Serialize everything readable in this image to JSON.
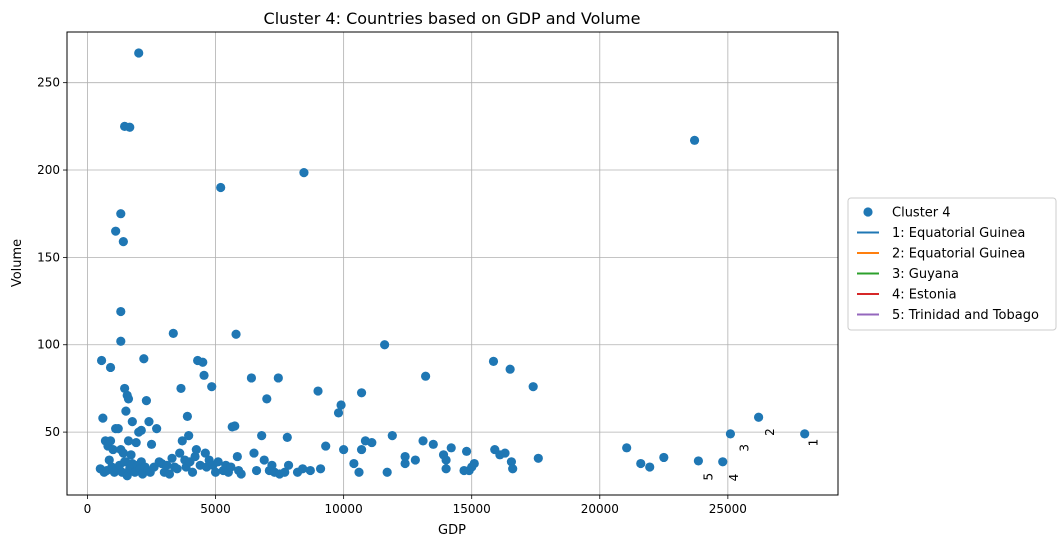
{
  "chart_data": {
    "type": "scatter",
    "title": "Cluster 4: Countries based on GDP and Volume",
    "xlabel": "GDP",
    "ylabel": "Volume",
    "xlim": [
      -800,
      29300
    ],
    "ylim": [
      14,
      279
    ],
    "xticks": [
      0,
      5000,
      10000,
      15000,
      20000,
      25000
    ],
    "xtick_labels": [
      "0",
      "5000",
      "10000",
      "15000",
      "20000",
      "25000"
    ],
    "yticks": [
      50,
      100,
      150,
      200,
      250
    ],
    "ytick_labels": [
      "50",
      "100",
      "150",
      "200",
      "250"
    ],
    "grid": true,
    "legend_placement": "outside-right",
    "series": [
      {
        "name": "Cluster 4",
        "color": "#1f77b4",
        "points": [
          [
            2000,
            267
          ],
          [
            1450,
            225
          ],
          [
            1650,
            224.5
          ],
          [
            1300,
            175
          ],
          [
            1100,
            165
          ],
          [
            1400,
            159
          ],
          [
            1300,
            119
          ],
          [
            1300,
            102
          ],
          [
            550,
            91
          ],
          [
            900,
            87
          ],
          [
            2200,
            92
          ],
          [
            1450,
            75
          ],
          [
            1550,
            71
          ],
          [
            1600,
            69
          ],
          [
            1500,
            62
          ],
          [
            1750,
            56
          ],
          [
            2100,
            51
          ],
          [
            2300,
            68
          ],
          [
            2400,
            56
          ],
          [
            2500,
            43
          ],
          [
            2700,
            52
          ],
          [
            600,
            58
          ],
          [
            700,
            45
          ],
          [
            800,
            42
          ],
          [
            900,
            45
          ],
          [
            1000,
            40
          ],
          [
            1100,
            52
          ],
          [
            1200,
            52
          ],
          [
            1300,
            40
          ],
          [
            1400,
            38
          ],
          [
            1500,
            33
          ],
          [
            1600,
            45
          ],
          [
            1700,
            37
          ],
          [
            1800,
            28
          ],
          [
            1900,
            44
          ],
          [
            2000,
            50
          ],
          [
            2100,
            33
          ],
          [
            2200,
            28
          ],
          [
            500,
            29
          ],
          [
            650,
            27
          ],
          [
            750,
            28
          ],
          [
            850,
            34
          ],
          [
            950,
            30
          ],
          [
            1050,
            27
          ],
          [
            1150,
            29
          ],
          [
            1250,
            31
          ],
          [
            1350,
            27
          ],
          [
            1450,
            33
          ],
          [
            1550,
            25
          ],
          [
            1650,
            29
          ],
          [
            1750,
            32
          ],
          [
            1850,
            27
          ],
          [
            1950,
            31
          ],
          [
            2050,
            29
          ],
          [
            2150,
            26
          ],
          [
            2250,
            30
          ],
          [
            2350,
            28
          ],
          [
            2450,
            27
          ],
          [
            2600,
            30
          ],
          [
            2800,
            33
          ],
          [
            2900,
            32
          ],
          [
            3000,
            27
          ],
          [
            3100,
            31
          ],
          [
            3200,
            26
          ],
          [
            3300,
            35
          ],
          [
            3400,
            30
          ],
          [
            3500,
            29
          ],
          [
            3600,
            38
          ],
          [
            3650,
            75
          ],
          [
            3700,
            45
          ],
          [
            3350,
            106.5
          ],
          [
            3800,
            34
          ],
          [
            3850,
            30
          ],
          [
            3900,
            59
          ],
          [
            3950,
            48
          ],
          [
            4000,
            33
          ],
          [
            4100,
            27
          ],
          [
            4200,
            36
          ],
          [
            4250,
            40
          ],
          [
            4300,
            91
          ],
          [
            4400,
            31
          ],
          [
            4500,
            90
          ],
          [
            4550,
            82.5
          ],
          [
            4600,
            38
          ],
          [
            4650,
            30
          ],
          [
            4750,
            34
          ],
          [
            4850,
            76
          ],
          [
            4900,
            31
          ],
          [
            5000,
            27
          ],
          [
            5100,
            33
          ],
          [
            5200,
            190
          ],
          [
            5300,
            28
          ],
          [
            5400,
            31
          ],
          [
            5500,
            27
          ],
          [
            5600,
            30
          ],
          [
            5650,
            53
          ],
          [
            5750,
            53.5
          ],
          [
            5800,
            106
          ],
          [
            5850,
            36
          ],
          [
            5900,
            28
          ],
          [
            6000,
            26
          ],
          [
            6400,
            81
          ],
          [
            6500,
            38
          ],
          [
            6600,
            28
          ],
          [
            6800,
            48
          ],
          [
            6900,
            34
          ],
          [
            7000,
            69
          ],
          [
            7100,
            28
          ],
          [
            7200,
            31
          ],
          [
            7300,
            27
          ],
          [
            7450,
            81
          ],
          [
            7500,
            26
          ],
          [
            7700,
            27
          ],
          [
            7800,
            47
          ],
          [
            7850,
            31
          ],
          [
            8200,
            27
          ],
          [
            8400,
            29
          ],
          [
            8450,
            198.5
          ],
          [
            8700,
            28
          ],
          [
            9000,
            73.5
          ],
          [
            9100,
            29
          ],
          [
            9300,
            42
          ],
          [
            9800,
            61
          ],
          [
            9900,
            65.5
          ],
          [
            10000,
            40
          ],
          [
            10400,
            32
          ],
          [
            10600,
            27
          ],
          [
            10700,
            72.5
          ],
          [
            10700,
            40
          ],
          [
            10850,
            45
          ],
          [
            11100,
            44
          ],
          [
            11600,
            100
          ],
          [
            11700,
            27
          ],
          [
            11900,
            48
          ],
          [
            12400,
            36
          ],
          [
            12400,
            32
          ],
          [
            12800,
            34
          ],
          [
            13100,
            45
          ],
          [
            13200,
            82
          ],
          [
            13500,
            43
          ],
          [
            13900,
            37
          ],
          [
            14000,
            34
          ],
          [
            14000,
            29
          ],
          [
            14200,
            41
          ],
          [
            14700,
            28
          ],
          [
            14800,
            39
          ],
          [
            14900,
            28
          ],
          [
            15000,
            30
          ],
          [
            15100,
            32
          ],
          [
            15850,
            90.5
          ],
          [
            15900,
            40
          ],
          [
            16100,
            37
          ],
          [
            16300,
            38
          ],
          [
            16500,
            86
          ],
          [
            16550,
            33
          ],
          [
            16600,
            29
          ],
          [
            17400,
            76
          ],
          [
            17600,
            35
          ],
          [
            21050,
            41
          ],
          [
            21600,
            32
          ],
          [
            21950,
            30
          ],
          [
            22500,
            35.5
          ],
          [
            23700,
            217
          ],
          [
            23850,
            33.5
          ],
          [
            24800,
            33
          ],
          [
            25100,
            49
          ],
          [
            26200,
            58.5
          ],
          [
            28000,
            49
          ]
        ]
      }
    ],
    "annotations": [
      {
        "text": "1",
        "x": 28500,
        "y": 44,
        "rotation": -90
      },
      {
        "text": "2",
        "x": 26800,
        "y": 50,
        "rotation": -90
      },
      {
        "text": "3",
        "x": 25800,
        "y": 41,
        "rotation": -90
      },
      {
        "text": "4",
        "x": 25400,
        "y": 24,
        "rotation": -90
      },
      {
        "text": "5",
        "x": 24400,
        "y": 24.5,
        "rotation": -90
      }
    ],
    "legend": [
      {
        "label": "Cluster 4",
        "kind": "marker",
        "color": "#1f77b4"
      },
      {
        "label": "1: Equatorial Guinea",
        "kind": "line",
        "color": "#1f77b4"
      },
      {
        "label": "2: Equatorial Guinea",
        "kind": "line",
        "color": "#ff7f0e"
      },
      {
        "label": "3: Guyana",
        "kind": "line",
        "color": "#2ca02c"
      },
      {
        "label": "4: Estonia",
        "kind": "line",
        "color": "#d62728"
      },
      {
        "label": "5: Trinidad and Tobago",
        "kind": "line",
        "color": "#9467bd"
      }
    ]
  }
}
